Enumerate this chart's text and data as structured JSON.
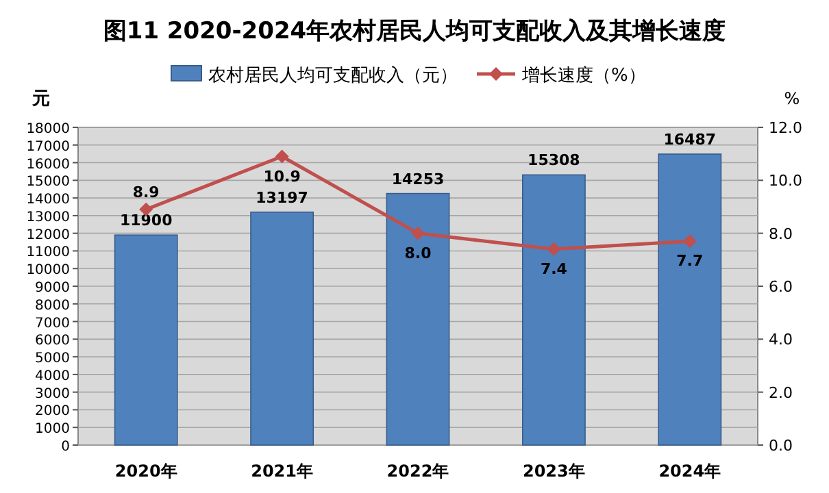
{
  "chart_data": {
    "type": "bar",
    "title": "图11  2020-2024年农村居民人均可支配收入及其增长速度",
    "ylabel": "元",
    "y2label": "%",
    "categories": [
      "2020年",
      "2021年",
      "2022年",
      "2023年",
      "2024年"
    ],
    "series": [
      {
        "name": "农村居民人均可支配收入（元）",
        "color": "#4f81bd",
        "values": [
          11900,
          13197,
          14253,
          15308,
          16487
        ]
      },
      {
        "name": "增长速度（%）",
        "type": "line",
        "axis": "y2",
        "color": "#c0504d",
        "marker": "diamond",
        "values": [
          8.9,
          10.9,
          8.0,
          7.4,
          7.7
        ],
        "value_labels": [
          "8.9",
          "10.9",
          "8.0",
          "7.4",
          "7.7"
        ]
      }
    ],
    "ylim": [
      0,
      18000
    ],
    "yticks": [
      0,
      1000,
      2000,
      3000,
      4000,
      5000,
      6000,
      7000,
      8000,
      9000,
      10000,
      11000,
      12000,
      13000,
      14000,
      15000,
      16000,
      17000,
      18000
    ],
    "y2lim": [
      0,
      12
    ],
    "y2ticks": [
      {
        "value": 0,
        "label": "0.0"
      },
      {
        "value": 2,
        "label": "2.0"
      },
      {
        "value": 4,
        "label": "4.0"
      },
      {
        "value": 6,
        "label": "6.0"
      },
      {
        "value": 8,
        "label": "8.0"
      },
      {
        "value": 10,
        "label": "10.0"
      },
      {
        "value": 12,
        "label": "12.0"
      }
    ],
    "grid": "y",
    "legend": "top",
    "data_labels": true
  }
}
